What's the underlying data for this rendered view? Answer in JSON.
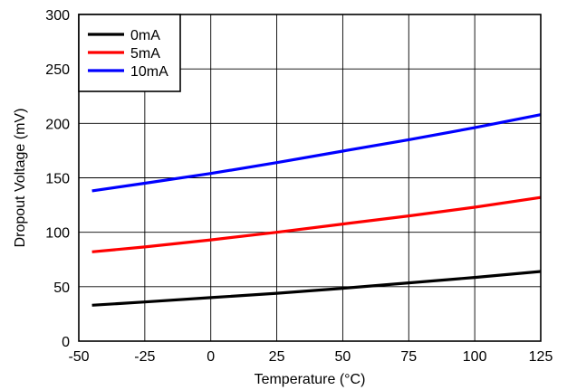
{
  "chart_data": {
    "type": "line",
    "xlabel": "Temperature (°C)",
    "ylabel": "Dropout Voltage (mV)",
    "xlim": [
      -50,
      125
    ],
    "ylim": [
      0,
      300
    ],
    "xticks": [
      -50,
      -25,
      0,
      25,
      50,
      75,
      100,
      125
    ],
    "yticks": [
      0,
      50,
      100,
      150,
      200,
      250,
      300
    ],
    "xtick_labels": [
      "-50",
      "-25",
      "0",
      "25",
      "50",
      "75",
      "100",
      "125"
    ],
    "ytick_labels": [
      "0",
      "50",
      "100",
      "150",
      "200",
      "250",
      "300"
    ],
    "grid": true,
    "legend_position": "top-left",
    "series": [
      {
        "name": "0mA",
        "color": "#000000",
        "x": [
          -45,
          -25,
          0,
          25,
          50,
          75,
          100,
          125
        ],
        "y": [
          33,
          36,
          40,
          44,
          48.5,
          53.5,
          58.5,
          64
        ]
      },
      {
        "name": "5mA",
        "color": "#ff0000",
        "x": [
          -45,
          -25,
          0,
          25,
          50,
          75,
          100,
          125
        ],
        "y": [
          82,
          86.5,
          93,
          100,
          107.5,
          115,
          123,
          132
        ]
      },
      {
        "name": "10mA",
        "color": "#0000ff",
        "x": [
          -45,
          -25,
          0,
          25,
          50,
          75,
          100,
          125
        ],
        "y": [
          138,
          145,
          154,
          164,
          174.5,
          185,
          196,
          208
        ]
      }
    ]
  }
}
